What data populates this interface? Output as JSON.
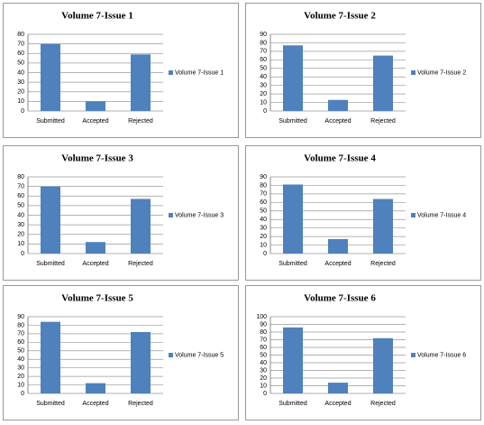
{
  "chart_data": [
    {
      "type": "bar",
      "title": "Volume 7-Issue 1",
      "categories": [
        "Submitted",
        "Accepted",
        "Rejected"
      ],
      "series": [
        {
          "name": "Volume 7-Issue 1",
          "color": "#4f81bd",
          "values": [
            70,
            10,
            59
          ]
        }
      ],
      "ylim": [
        0,
        80
      ],
      "yticks": [
        0,
        10,
        20,
        30,
        40,
        50,
        60,
        70,
        80
      ],
      "grid": true,
      "legend": "right"
    },
    {
      "type": "bar",
      "title": "Volume 7-Issue 2",
      "categories": [
        "Submitted",
        "Accepted",
        "Rejected"
      ],
      "series": [
        {
          "name": "Volume 7-Issue 2",
          "color": "#4f81bd",
          "values": [
            77,
            13,
            65
          ]
        }
      ],
      "ylim": [
        0,
        90
      ],
      "yticks": [
        0,
        10,
        20,
        30,
        40,
        50,
        60,
        70,
        80,
        90
      ],
      "grid": true,
      "legend": "right"
    },
    {
      "type": "bar",
      "title": "Volume 7-Issue 3",
      "categories": [
        "Submitted",
        "Accepted",
        "Rejected"
      ],
      "series": [
        {
          "name": "Volume 7-Issue 3",
          "color": "#4f81bd",
          "values": [
            70,
            12,
            57
          ]
        }
      ],
      "ylim": [
        0,
        80
      ],
      "yticks": [
        0,
        10,
        20,
        30,
        40,
        50,
        60,
        70,
        80
      ],
      "grid": true,
      "legend": "right"
    },
    {
      "type": "bar",
      "title": "Volume 7-Issue 4",
      "categories": [
        "Submitted",
        "Accepted",
        "Rejected"
      ],
      "series": [
        {
          "name": "Volume 7-Issue 4",
          "color": "#4f81bd",
          "values": [
            81,
            17,
            64
          ]
        }
      ],
      "ylim": [
        0,
        90
      ],
      "yticks": [
        0,
        10,
        20,
        30,
        40,
        50,
        60,
        70,
        80,
        90
      ],
      "grid": true,
      "legend": "right"
    },
    {
      "type": "bar",
      "title": "Volume 7-Issue 5",
      "categories": [
        "Submitted",
        "Accepted",
        "Rejected"
      ],
      "series": [
        {
          "name": "Volume 7-Issue 5",
          "color": "#4f81bd",
          "values": [
            84,
            12,
            72
          ]
        }
      ],
      "ylim": [
        0,
        90
      ],
      "yticks": [
        0,
        10,
        20,
        30,
        40,
        50,
        60,
        70,
        80,
        90
      ],
      "grid": true,
      "legend": "right"
    },
    {
      "type": "bar",
      "title": "Volume 7-Issue 6",
      "categories": [
        "Submitted",
        "Accepted",
        "Rejected"
      ],
      "series": [
        {
          "name": "Volume 7-Issue 6",
          "color": "#4f81bd",
          "values": [
            86,
            14,
            72
          ]
        }
      ],
      "ylim": [
        0,
        100
      ],
      "yticks": [
        0,
        10,
        20,
        30,
        40,
        50,
        60,
        70,
        80,
        90,
        100
      ],
      "grid": true,
      "legend": "right"
    }
  ]
}
